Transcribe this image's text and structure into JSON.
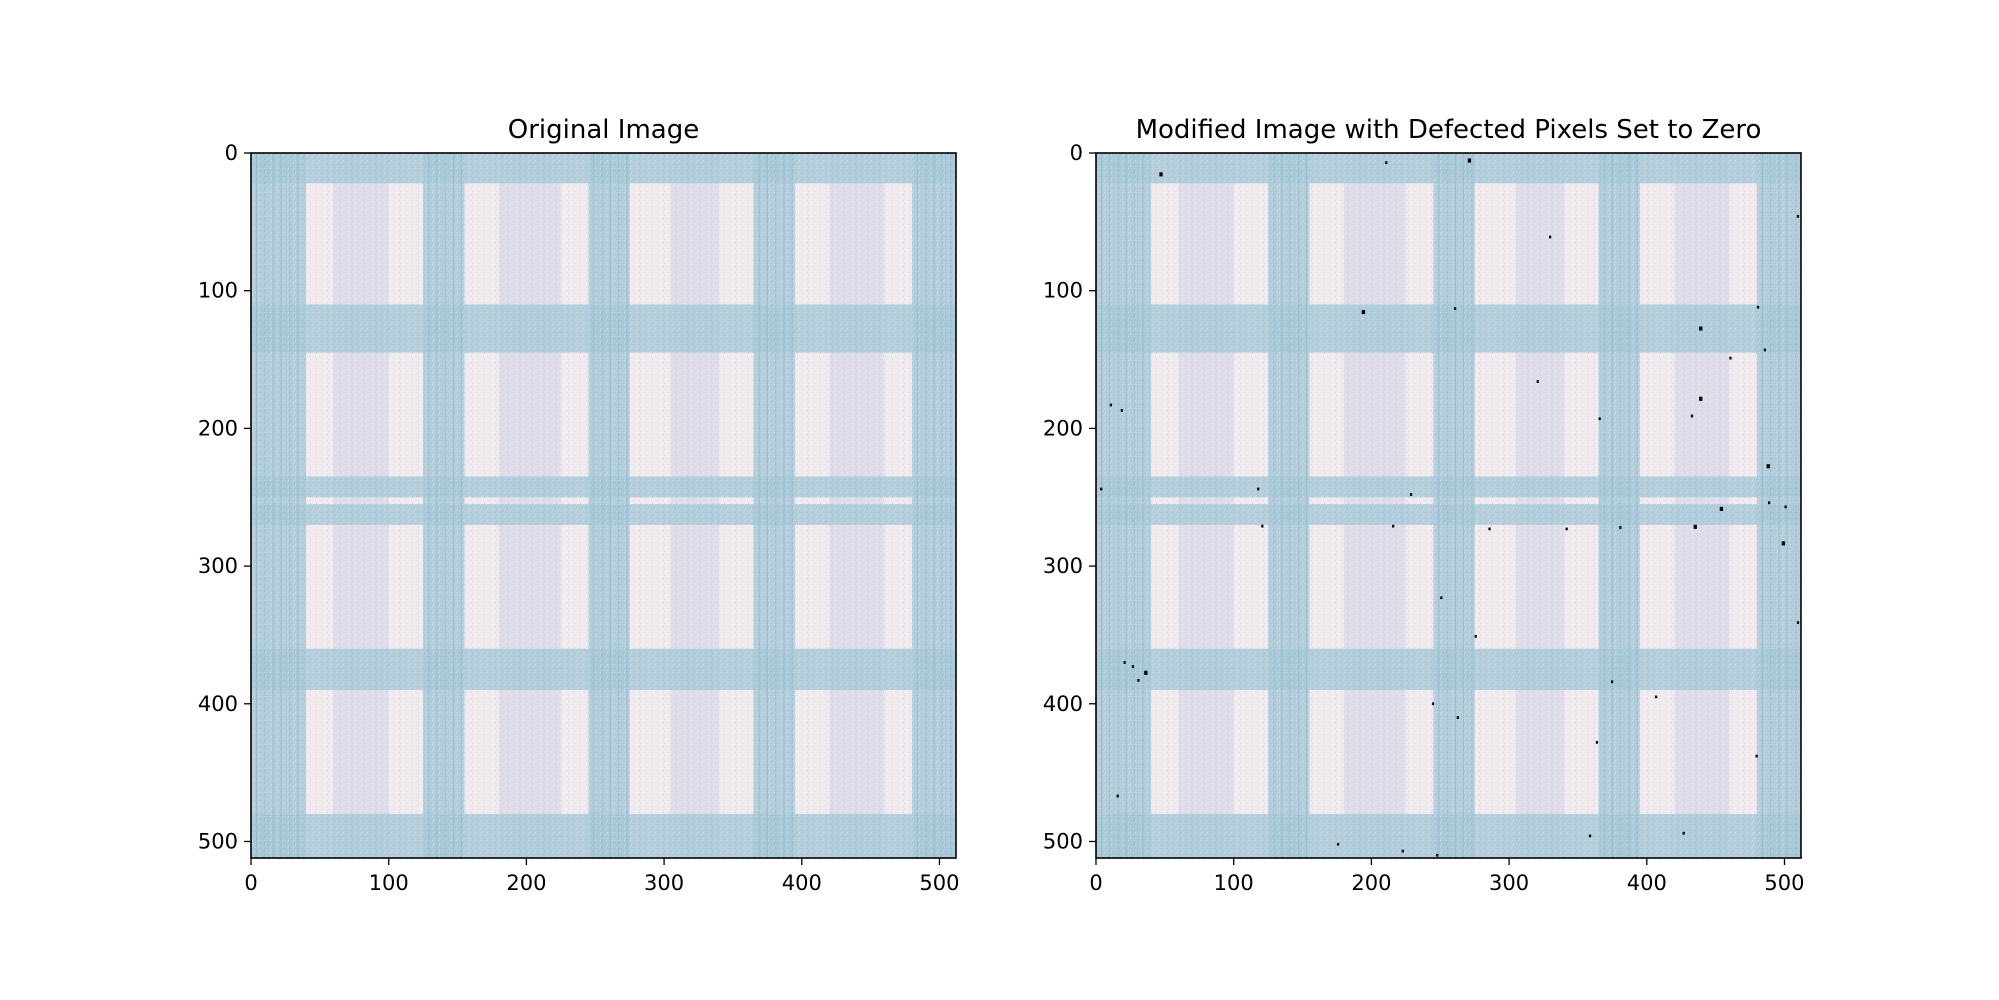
{
  "chart_data": [
    {
      "type": "image",
      "title": "Original Image",
      "image_width": 512,
      "image_height": 512,
      "xlim": [
        0,
        512
      ],
      "ylim": [
        512,
        0
      ],
      "xticks": [
        0,
        100,
        200,
        300,
        400,
        500
      ],
      "yticks": [
        0,
        100,
        200,
        300,
        400,
        500
      ],
      "grid": false,
      "pattern": "light blue and white plaid fabric texture",
      "colors": {
        "background": "#f1eaee",
        "stripe": "#a9c9d8",
        "lavender": "#cdd1e6"
      },
      "defects": []
    },
    {
      "type": "image",
      "title": "Modified Image with Defected Pixels Set to Zero",
      "image_width": 512,
      "image_height": 512,
      "xlim": [
        0,
        512
      ],
      "ylim": [
        512,
        0
      ],
      "xticks": [
        0,
        100,
        200,
        300,
        400,
        500
      ],
      "yticks": [
        0,
        100,
        200,
        300,
        400,
        500
      ],
      "grid": false,
      "pattern": "light blue and white plaid fabric texture",
      "colors": {
        "background": "#f1eaee",
        "stripe": "#a9c9d8",
        "lavender": "#cdd1e6",
        "defect": "#000000"
      },
      "defects": [
        [
          46,
          14,
          3
        ],
        [
          210,
          6,
          2
        ],
        [
          270,
          4,
          3
        ],
        [
          329,
          60,
          2
        ],
        [
          193,
          114,
          3
        ],
        [
          260,
          112,
          2
        ],
        [
          480,
          111,
          2
        ],
        [
          438,
          126,
          3
        ],
        [
          485,
          142,
          2
        ],
        [
          460,
          148,
          2
        ],
        [
          10,
          182,
          2
        ],
        [
          438,
          177,
          3
        ],
        [
          432,
          190,
          2
        ],
        [
          365,
          192,
          2
        ],
        [
          18,
          186,
          2
        ],
        [
          487,
          226,
          3
        ],
        [
          3,
          243,
          2
        ],
        [
          117,
          243,
          2
        ],
        [
          228,
          247,
          2
        ],
        [
          453,
          257,
          3
        ],
        [
          488,
          253,
          2
        ],
        [
          500,
          256,
          2
        ],
        [
          120,
          270,
          2
        ],
        [
          215,
          270,
          2
        ],
        [
          285,
          272,
          2
        ],
        [
          341,
          272,
          2
        ],
        [
          380,
          271,
          2
        ],
        [
          434,
          270,
          3
        ],
        [
          498,
          282,
          3
        ],
        [
          250,
          322,
          2
        ],
        [
          275,
          350,
          2
        ],
        [
          20,
          369,
          2
        ],
        [
          26,
          372,
          2
        ],
        [
          35,
          376,
          3
        ],
        [
          30,
          382,
          2
        ],
        [
          374,
          383,
          2
        ],
        [
          406,
          394,
          2
        ],
        [
          262,
          409,
          2
        ],
        [
          244,
          399,
          2
        ],
        [
          363,
          427,
          2
        ],
        [
          479,
          437,
          2
        ],
        [
          15,
          466,
          2
        ],
        [
          175,
          501,
          2
        ],
        [
          222,
          506,
          2
        ],
        [
          247,
          509,
          2
        ],
        [
          426,
          493,
          2
        ],
        [
          358,
          495,
          2
        ],
        [
          509,
          340,
          2
        ],
        [
          509,
          45,
          2
        ],
        [
          320,
          165,
          2
        ]
      ]
    }
  ]
}
